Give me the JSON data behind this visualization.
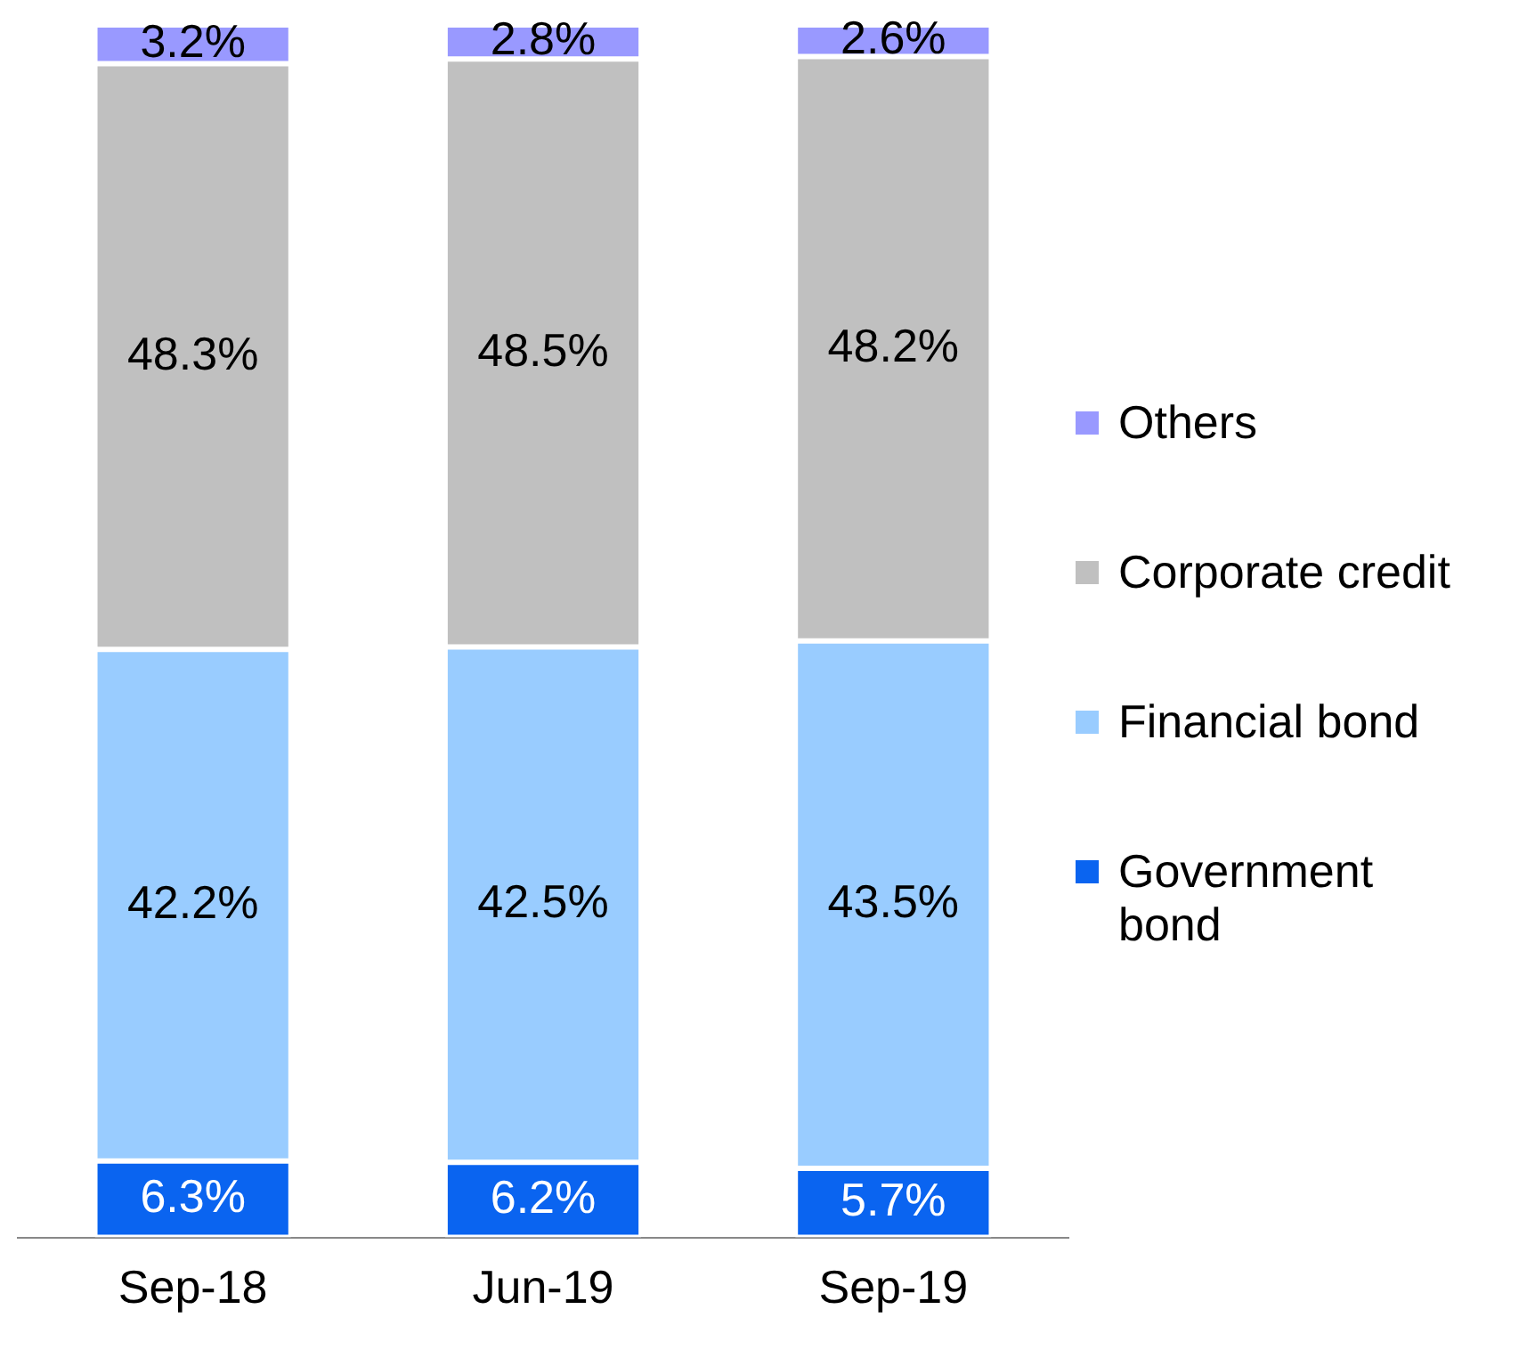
{
  "chart_data": {
    "type": "bar",
    "stacked": true,
    "legend": "right",
    "grid": false,
    "categories": [
      "Sep-18",
      "Jun-19",
      "Sep-19"
    ],
    "series": [
      {
        "name": "Government bond",
        "color": "#0a64f0",
        "values": [
          6.3,
          6.2,
          5.7
        ],
        "value_labels": [
          "6.3%",
          "6.2%",
          "5.7%"
        ]
      },
      {
        "name": "Financial bond",
        "color": "#99ccff",
        "values": [
          42.2,
          42.5,
          43.5
        ],
        "value_labels": [
          "42.2%",
          "42.5%",
          "43.5%"
        ]
      },
      {
        "name": "Corporate credit",
        "color": "#c0c0c0",
        "values": [
          48.3,
          48.5,
          48.2
        ],
        "value_labels": [
          "48.3%",
          "48.5%",
          "48.2%"
        ]
      },
      {
        "name": "Others",
        "color": "#9999ff",
        "values": [
          3.2,
          2.8,
          2.6
        ],
        "value_labels": [
          "3.2%",
          "2.8%",
          "2.6%"
        ]
      }
    ]
  }
}
